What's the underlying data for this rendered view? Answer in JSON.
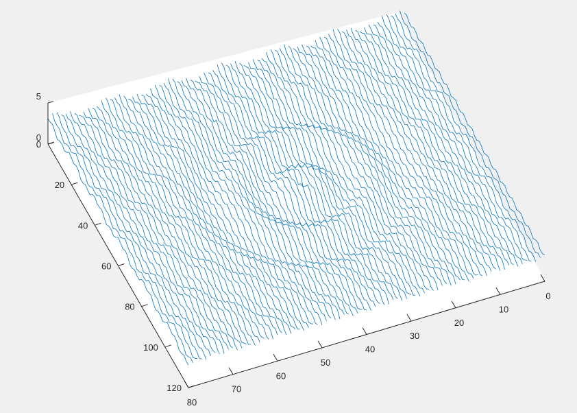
{
  "chart_data": {
    "type": "mesh",
    "title": "",
    "xlabel": "",
    "ylabel": "",
    "zlabel": "",
    "xlim": [
      0,
      80
    ],
    "ylim": [
      0,
      120
    ],
    "zlim": [
      0,
      5
    ],
    "grid": false,
    "line_color": "#0072bd",
    "background": "#f0f0f0",
    "axes_face": "#ffffff",
    "x_ticks": [
      "0",
      "10",
      "20",
      "30",
      "40",
      "50",
      "60",
      "70",
      "80"
    ],
    "y_ticks": [
      "0",
      "20",
      "40",
      "60",
      "80",
      "100",
      "120"
    ],
    "z_ticks": [
      "0",
      "5"
    ],
    "description_of_surface": {
      "x_samples": 80,
      "y_samples": 120,
      "z_range": [
        0,
        5
      ],
      "feature": "oval basin with concentric ridge rings"
    }
  }
}
